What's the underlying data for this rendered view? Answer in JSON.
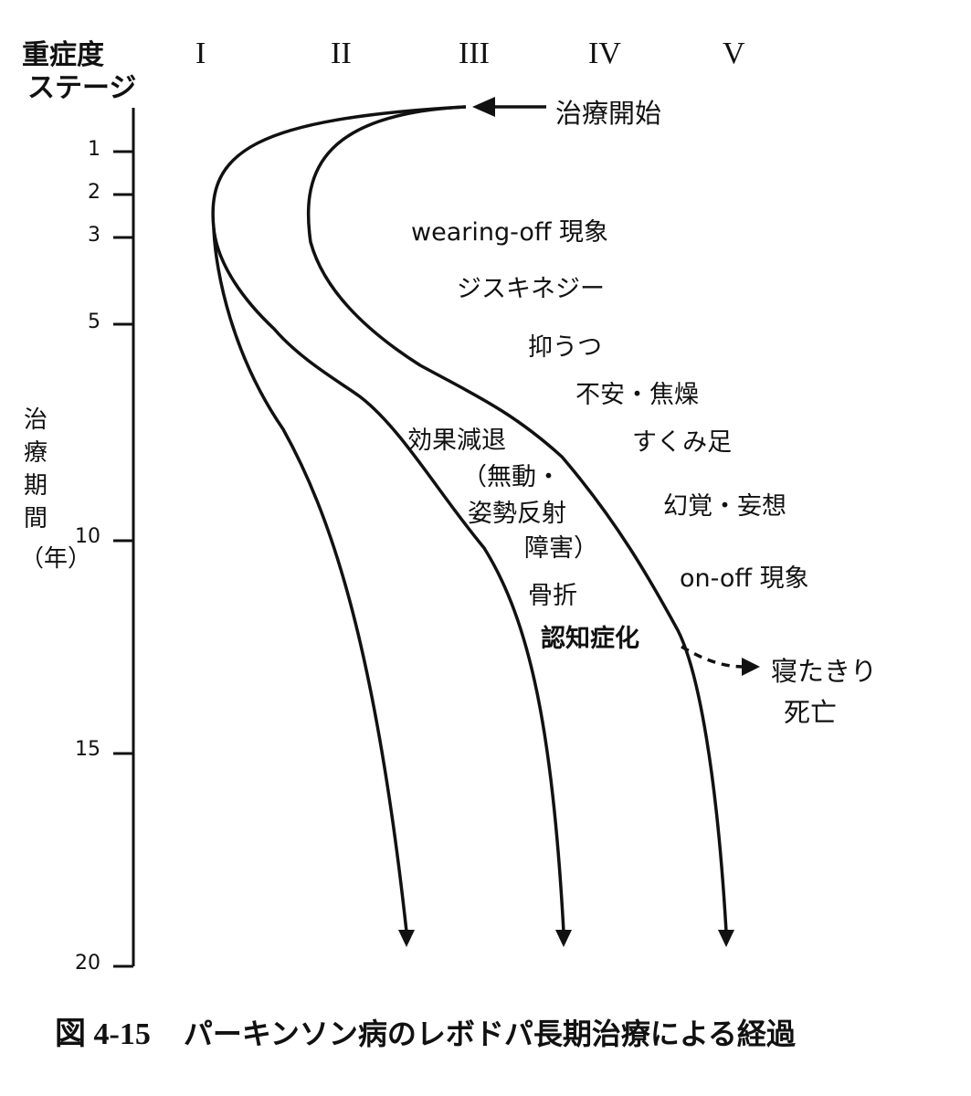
{
  "header": {
    "severity_label": "重症度",
    "stage_label": "ステージ",
    "stages": [
      "I",
      "II",
      "III",
      "IV",
      "V"
    ]
  },
  "y_axis": {
    "label_chars": [
      "治",
      "療",
      "期",
      "間",
      "（年）"
    ],
    "ticks": [
      "1",
      "2",
      "3",
      "5",
      "10",
      "15",
      "20"
    ]
  },
  "start_marker": "治療開始",
  "symptoms": {
    "wearing_off": "wearing-off 現象",
    "dyskinesia": "ジスキネジー",
    "depression": "抑うつ",
    "anxiety": "不安・焦燥",
    "freezing": "すくみ足",
    "hallucination": "幻覚・妄想",
    "on_off": "on-off 現象",
    "effect_decline_1": "効果減退",
    "effect_decline_2": "（無動・",
    "effect_decline_3": "姿勢反射",
    "effect_decline_4": "障害）",
    "fracture": "骨折",
    "dementia": "認知症化"
  },
  "outcome": {
    "line1": "寝たきり",
    "line2": "死亡"
  },
  "caption": {
    "figure_number": "図 4-15",
    "text": "パーキンソン病のレボドパ長期治療による経過"
  },
  "icons": {
    "start_arrow": "left-arrow-icon",
    "curve_end_arrow": "down-arrow-icon",
    "outcome_arrow": "right-dashed-arrow-icon"
  }
}
